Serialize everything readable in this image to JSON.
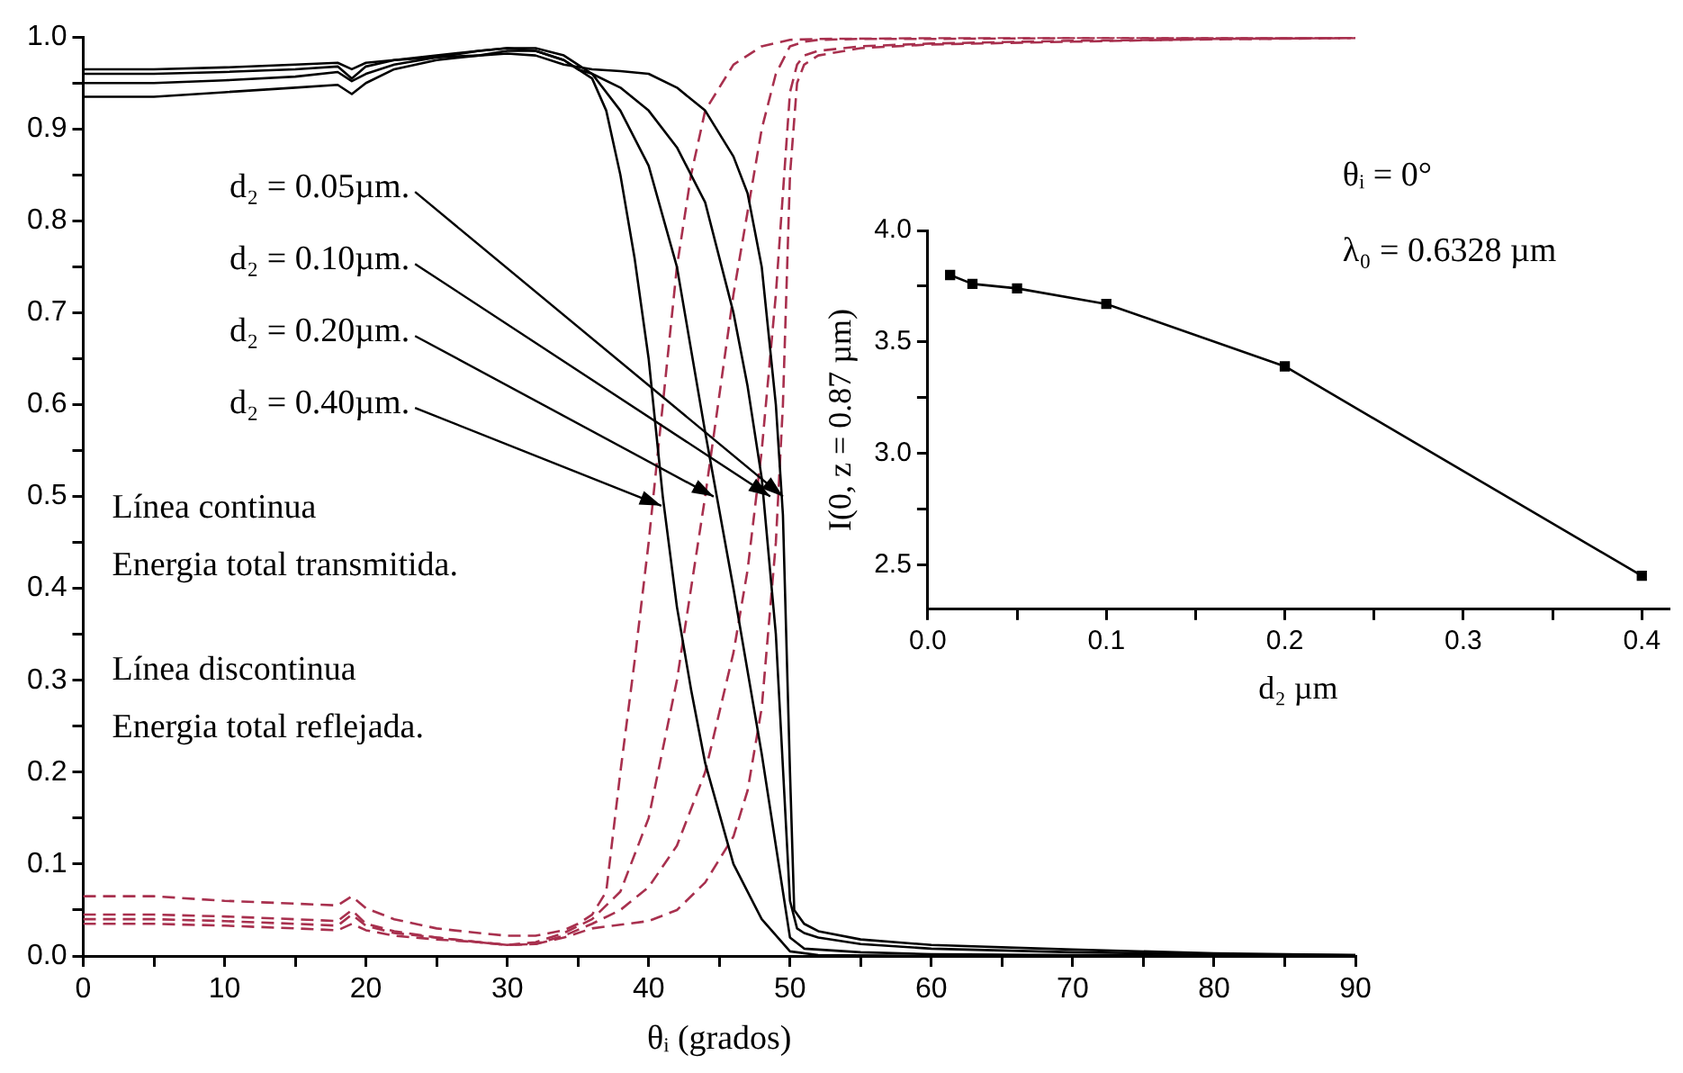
{
  "chart_data": [
    {
      "type": "line",
      "xlabel": "θᵢ (grados)",
      "xlim": [
        0,
        90
      ],
      "ylim": [
        0,
        1
      ],
      "xticks": [
        0,
        {
          "value": 5,
          "label": null
        },
        10,
        {
          "value": 15,
          "label": null
        },
        20,
        {
          "value": 25,
          "label": null
        },
        30,
        {
          "value": 35,
          "label": null
        },
        40,
        {
          "value": 45,
          "label": null
        },
        50,
        {
          "value": 55,
          "label": null
        },
        60,
        {
          "value": 65,
          "label": null
        },
        70,
        {
          "value": 75,
          "label": null
        },
        80,
        {
          "value": 85,
          "label": null
        },
        90
      ],
      "yticks": [
        {
          "value": 0,
          "label": "0.0"
        },
        {
          "value": 0.05,
          "label": null
        },
        0.1,
        {
          "value": 0.15,
          "label": null
        },
        0.2,
        {
          "value": 0.25,
          "label": null
        },
        0.3,
        {
          "value": 0.35,
          "label": null
        },
        0.4,
        {
          "value": 0.45,
          "label": null
        },
        0.5,
        {
          "value": 0.55,
          "label": null
        },
        0.6,
        {
          "value": 0.65,
          "label": null
        },
        0.7,
        {
          "value": 0.75,
          "label": null
        },
        0.8,
        {
          "value": 0.85,
          "label": null
        },
        0.9,
        {
          "value": 0.95,
          "label": null
        },
        {
          "value": 1,
          "label": "1.0"
        }
      ],
      "grid": false,
      "legend": false,
      "marker": "none",
      "series": [
        {
          "color": "#000000",
          "line_style": "solid",
          "x": [
            0,
            5,
            10,
            15,
            18,
            19,
            20,
            22,
            25,
            28,
            30,
            32,
            34,
            36,
            38,
            40,
            42,
            44,
            46,
            47,
            48,
            49,
            49.5,
            50,
            50.3,
            51,
            52,
            55,
            60,
            70,
            80,
            90
          ],
          "values": [
            0.965,
            0.965,
            0.967,
            0.97,
            0.972,
            0.965,
            0.972,
            0.975,
            0.978,
            0.98,
            0.982,
            0.98,
            0.97,
            0.965,
            0.963,
            0.96,
            0.945,
            0.92,
            0.87,
            0.83,
            0.75,
            0.6,
            0.48,
            0.2,
            0.05,
            0.035,
            0.027,
            0.018,
            0.012,
            0.007,
            0.003,
            0.001
          ]
        },
        {
          "color": "#000000",
          "line_style": "solid",
          "x": [
            0,
            5,
            10,
            15,
            18,
            19,
            20,
            22,
            25,
            28,
            30,
            32,
            34,
            35,
            36,
            38,
            40,
            42,
            44,
            46,
            47,
            48,
            49,
            50,
            50.5,
            51,
            52,
            55,
            60,
            70,
            80,
            90
          ],
          "values": [
            0.96,
            0.96,
            0.962,
            0.965,
            0.968,
            0.955,
            0.968,
            0.975,
            0.98,
            0.985,
            0.988,
            0.985,
            0.975,
            0.965,
            0.96,
            0.945,
            0.92,
            0.88,
            0.82,
            0.7,
            0.62,
            0.52,
            0.35,
            0.06,
            0.03,
            0.025,
            0.02,
            0.013,
            0.008,
            0.004,
            0.002,
            0.001
          ]
        },
        {
          "color": "#000000",
          "line_style": "solid",
          "x": [
            0,
            5,
            10,
            15,
            18,
            19,
            20,
            22,
            25,
            28,
            30,
            32,
            34,
            35,
            36,
            38,
            40,
            42,
            44,
            46,
            48,
            49,
            50,
            51,
            55,
            60,
            70,
            90
          ],
          "values": [
            0.95,
            0.95,
            0.953,
            0.957,
            0.962,
            0.952,
            0.96,
            0.97,
            0.978,
            0.985,
            0.988,
            0.988,
            0.98,
            0.97,
            0.96,
            0.92,
            0.86,
            0.75,
            0.57,
            0.4,
            0.22,
            0.12,
            0.02,
            0.008,
            0.004,
            0.002,
            0.001,
            0
          ]
        },
        {
          "color": "#000000",
          "line_style": "solid",
          "x": [
            0,
            5,
            10,
            15,
            18,
            19,
            20,
            22,
            25,
            28,
            30,
            32,
            34,
            35,
            36,
            37,
            38,
            39,
            40,
            41,
            42,
            43,
            44,
            46,
            48,
            50,
            52,
            60,
            90
          ],
          "values": [
            0.935,
            0.935,
            0.94,
            0.945,
            0.948,
            0.938,
            0.95,
            0.965,
            0.975,
            0.98,
            0.985,
            0.985,
            0.975,
            0.965,
            0.955,
            0.92,
            0.85,
            0.76,
            0.65,
            0.5,
            0.38,
            0.29,
            0.21,
            0.1,
            0.04,
            0.005,
            0.001,
            0,
            0
          ]
        },
        {
          "color": "#a8304e",
          "line_style": "dashed",
          "x": [
            0,
            5,
            10,
            15,
            18,
            19,
            20,
            22,
            25,
            28,
            30,
            32,
            34,
            36,
            38,
            40,
            42,
            44,
            46,
            47,
            48,
            49,
            49.5,
            50,
            50.5,
            51,
            52,
            55,
            60,
            70,
            80,
            90
          ],
          "values": [
            0.035,
            0.035,
            0.033,
            0.03,
            0.028,
            0.035,
            0.028,
            0.022,
            0.018,
            0.015,
            0.012,
            0.013,
            0.02,
            0.03,
            0.034,
            0.038,
            0.05,
            0.08,
            0.13,
            0.18,
            0.27,
            0.45,
            0.6,
            0.85,
            0.95,
            0.97,
            0.98,
            0.988,
            0.992,
            0.995,
            0.998,
            0.999
          ]
        },
        {
          "color": "#a8304e",
          "line_style": "dashed",
          "x": [
            0,
            5,
            10,
            15,
            18,
            19,
            20,
            22,
            25,
            28,
            30,
            32,
            34,
            36,
            38,
            40,
            42,
            44,
            46,
            47,
            48,
            49,
            50,
            50.5,
            51,
            52,
            55,
            60,
            70,
            90
          ],
          "values": [
            0.04,
            0.04,
            0.038,
            0.035,
            0.033,
            0.045,
            0.033,
            0.025,
            0.02,
            0.015,
            0.012,
            0.013,
            0.022,
            0.035,
            0.05,
            0.075,
            0.12,
            0.2,
            0.33,
            0.42,
            0.55,
            0.72,
            0.94,
            0.97,
            0.98,
            0.985,
            0.99,
            0.993,
            0.996,
            0.999
          ]
        },
        {
          "color": "#a8304e",
          "line_style": "dashed",
          "x": [
            0,
            5,
            10,
            15,
            18,
            19,
            20,
            22,
            25,
            28,
            30,
            32,
            34,
            36,
            38,
            40,
            42,
            44,
            46,
            48,
            49,
            50,
            51,
            52,
            55,
            60,
            70,
            90
          ],
          "values": [
            0.045,
            0.045,
            0.043,
            0.04,
            0.038,
            0.05,
            0.035,
            0.027,
            0.02,
            0.015,
            0.012,
            0.015,
            0.025,
            0.04,
            0.07,
            0.15,
            0.3,
            0.5,
            0.72,
            0.9,
            0.96,
            0.99,
            0.995,
            0.997,
            0.998,
            0.998,
            0.999,
            1.0
          ]
        },
        {
          "color": "#a8304e",
          "line_style": "dashed",
          "x": [
            0,
            5,
            10,
            15,
            18,
            19,
            20,
            22,
            25,
            28,
            30,
            32,
            34,
            35,
            36,
            37,
            38,
            39,
            40,
            41,
            42,
            43,
            44,
            46,
            48,
            50,
            52,
            60,
            90
          ],
          "values": [
            0.065,
            0.065,
            0.06,
            0.057,
            0.055,
            0.065,
            0.052,
            0.04,
            0.03,
            0.025,
            0.022,
            0.022,
            0.028,
            0.035,
            0.045,
            0.07,
            0.2,
            0.32,
            0.45,
            0.6,
            0.75,
            0.85,
            0.92,
            0.97,
            0.99,
            0.997,
            0.998,
            0.999,
            1.0
          ]
        }
      ],
      "annotations": [
        {
          "text": "d₂ = 0.05µm.",
          "x": 49.5,
          "y": 0.5
        },
        {
          "text": "d₂ = 0.10µm.",
          "x": 48.6,
          "y": 0.5
        },
        {
          "text": "d₂ = 0.20µm.",
          "x": 44.6,
          "y": 0.5
        },
        {
          "text": "d₂ = 0.40µm.",
          "x": 40.9,
          "y": 0.49
        },
        "Línea continua",
        "Energia total transmitida.",
        "Línea discontinua",
        "Energia total reflejada."
      ]
    },
    {
      "type": "line",
      "xlabel": "d₂ µm",
      "ylabel": "I(0, z = 0.87 µm)",
      "xlim": [
        0,
        0.415
      ],
      "ylim": [
        2.3,
        4.0
      ],
      "xticks": [
        {
          "value": 0,
          "label": "0.0"
        },
        {
          "value": 0.05,
          "label": null
        },
        0.1,
        {
          "value": 0.15,
          "label": null
        },
        0.2,
        {
          "value": 0.25,
          "label": null
        },
        0.3,
        {
          "value": 0.35,
          "label": null
        },
        0.4
      ],
      "yticks": [
        2.5,
        {
          "value": 2.75,
          "label": null
        },
        {
          "value": 3,
          "label": "3.0"
        },
        {
          "value": 3.25,
          "label": null
        },
        3.5,
        {
          "value": 3.75,
          "label": null
        },
        {
          "value": 4,
          "label": "4.0"
        }
      ],
      "grid": false,
      "legend": false,
      "marker": "square",
      "series": [
        {
          "color": "#000000",
          "line_style": "solid",
          "x": [
            0.0125,
            0.025,
            0.05,
            0.1,
            0.2,
            0.4
          ],
          "values": [
            3.8,
            3.76,
            3.74,
            3.67,
            3.39,
            2.45
          ]
        }
      ],
      "annotations": [
        "θᵢ = 0°",
        "λ₀ = 0.6328 µm"
      ]
    }
  ]
}
